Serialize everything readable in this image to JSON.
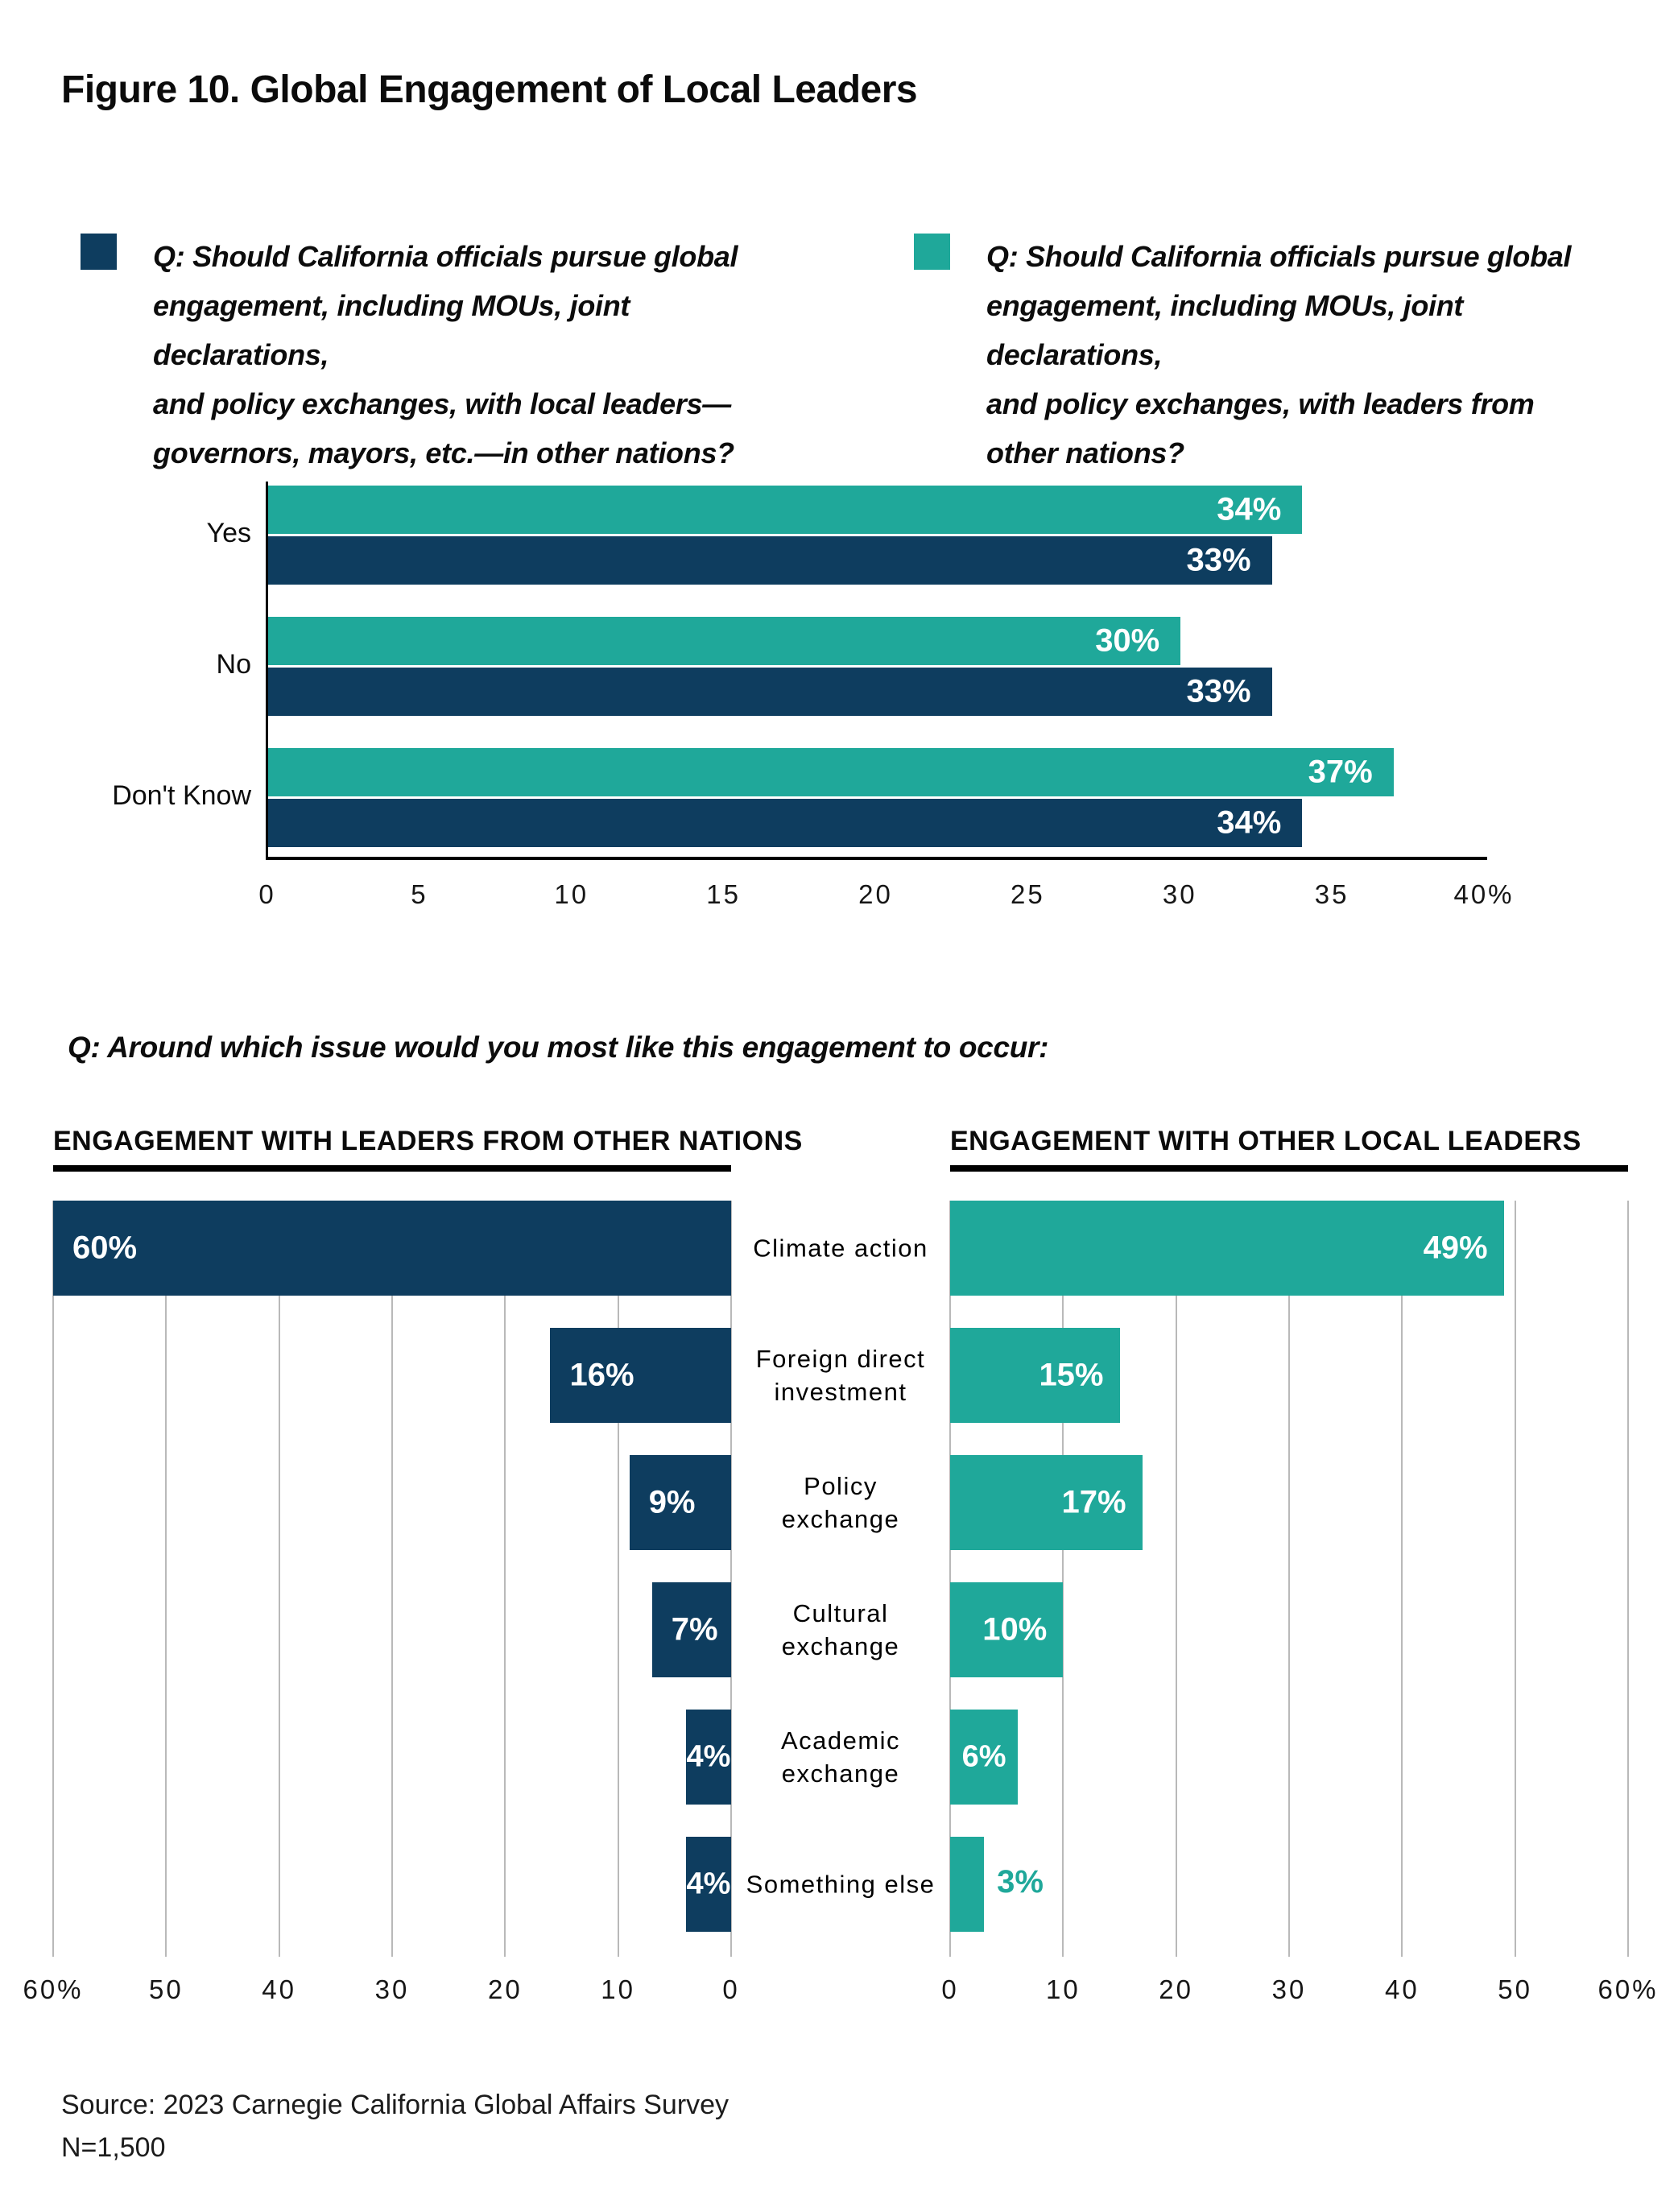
{
  "figure": {
    "title": "Figure 10. Global Engagement of Local Leaders",
    "followup_question": "Q: Around which issue would you most like this engagement to occur:",
    "source_lines": [
      "Source: 2023 Carnegie California Global Affairs Survey",
      "N=1,500"
    ]
  },
  "colors": {
    "navy": "#0e3d5f",
    "teal": "#1fa89a",
    "gridline": "#b9b9b9",
    "axis": "#000000"
  },
  "legend": [
    {
      "color_key": "navy",
      "text_lines": [
        "Q: Should California officials pursue global",
        "engagement, including MOUs, joint declarations,",
        "and policy exchanges, with local leaders—",
        "governors, mayors, etc.—in other nations?"
      ]
    },
    {
      "color_key": "teal",
      "text_lines": [
        "Q: Should California officials pursue global",
        "engagement, including MOUs, joint declarations,",
        "and policy exchanges, with leaders from",
        "other nations?"
      ]
    }
  ],
  "issue_categories": [
    [
      "Climate action"
    ],
    [
      "Foreign direct",
      "investment"
    ],
    [
      "Policy",
      "exchange"
    ],
    [
      "Cultural",
      "exchange"
    ],
    [
      "Academic",
      "exchange"
    ],
    [
      "Something else"
    ]
  ],
  "chart_data": [
    {
      "id": "global-engagement-support",
      "type": "bar",
      "orientation": "horizontal",
      "categories": [
        "Yes",
        "No",
        "Don't Know"
      ],
      "series": [
        {
          "name": "with leaders from other nations",
          "color_key": "teal",
          "values": [
            34,
            30,
            37
          ],
          "labels": [
            "34%",
            "30%",
            "37%"
          ]
        },
        {
          "name": "with local leaders—governors, mayors, etc.—in other nations",
          "color_key": "navy",
          "values": [
            33,
            33,
            34
          ],
          "labels": [
            "33%",
            "33%",
            "34%"
          ]
        }
      ],
      "xlim": [
        0,
        40
      ],
      "tick_labels": [
        "0",
        "5",
        "10",
        "15",
        "20",
        "25",
        "30",
        "35",
        "40%"
      ],
      "grid": false,
      "legend_position": "top"
    },
    {
      "id": "issues-leaders-from-other-nations",
      "title": "ENGAGEMENT WITH LEADERS FROM OTHER NATIONS",
      "type": "bar",
      "orientation": "horizontal",
      "direction": "rtl",
      "color_key": "navy",
      "values": [
        60,
        16,
        9,
        7,
        4,
        4
      ],
      "labels": [
        "60%",
        "16%",
        "9%",
        "7%",
        "4%",
        "4%"
      ],
      "xlim": [
        0,
        60
      ],
      "tick_labels": [
        "60%",
        "50",
        "40",
        "30",
        "20",
        "10",
        "0"
      ],
      "grid": true
    },
    {
      "id": "issues-other-local-leaders",
      "title": "ENGAGEMENT WITH OTHER LOCAL LEADERS",
      "type": "bar",
      "orientation": "horizontal",
      "direction": "ltr",
      "color_key": "teal",
      "values": [
        49,
        15,
        17,
        10,
        6,
        3
      ],
      "labels": [
        "49%",
        "15%",
        "17%",
        "10%",
        "6%",
        "3%"
      ],
      "outside_label_indices": [
        5
      ],
      "xlim": [
        0,
        60
      ],
      "tick_labels": [
        "0",
        "10",
        "20",
        "30",
        "40",
        "50",
        "60%"
      ],
      "grid": true
    }
  ]
}
